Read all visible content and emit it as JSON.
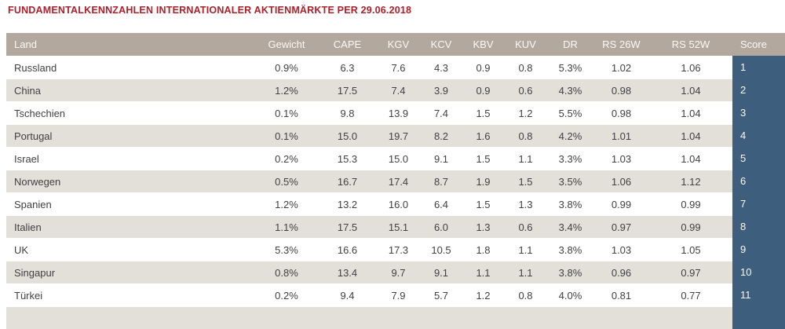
{
  "title": "FUNDAMENTALKENNZAHLEN INTERNATIONALER AKTIENMÄRKTE PER 29.06.2018",
  "chart_data": {
    "type": "table",
    "columns": [
      "Land",
      "Gewicht",
      "CAPE",
      "KGV",
      "KCV",
      "KBV",
      "KUV",
      "DR",
      "RS 26W",
      "RS 52W",
      "Score"
    ],
    "rows": [
      [
        "Russland",
        "0.9%",
        "6.3",
        "7.6",
        "4.3",
        "0.9",
        "0.8",
        "5.3%",
        "1.02",
        "1.06",
        "1"
      ],
      [
        "China",
        "1.2%",
        "17.5",
        "7.4",
        "3.9",
        "0.9",
        "0.6",
        "4.3%",
        "0.98",
        "1.04",
        "2"
      ],
      [
        "Tschechien",
        "0.1%",
        "9.8",
        "13.9",
        "7.4",
        "1.5",
        "1.2",
        "5.5%",
        "0.98",
        "1.04",
        "3"
      ],
      [
        "Portugal",
        "0.1%",
        "15.0",
        "19.7",
        "8.2",
        "1.6",
        "0.8",
        "4.2%",
        "1.01",
        "1.04",
        "4"
      ],
      [
        "Israel",
        "0.2%",
        "15.3",
        "15.0",
        "9.1",
        "1.5",
        "1.1",
        "3.3%",
        "1.03",
        "1.04",
        "5"
      ],
      [
        "Norwegen",
        "0.5%",
        "16.7",
        "17.4",
        "8.7",
        "1.9",
        "1.5",
        "3.5%",
        "1.06",
        "1.12",
        "6"
      ],
      [
        "Spanien",
        "1.2%",
        "13.2",
        "16.0",
        "6.4",
        "1.5",
        "1.3",
        "3.8%",
        "0.99",
        "0.99",
        "7"
      ],
      [
        "Italien",
        "1.1%",
        "17.5",
        "15.1",
        "6.0",
        "1.3",
        "0.6",
        "3.4%",
        "0.97",
        "0.99",
        "8"
      ],
      [
        "UK",
        "5.3%",
        "16.6",
        "17.3",
        "10.5",
        "1.8",
        "1.1",
        "3.8%",
        "1.03",
        "1.05",
        "9"
      ],
      [
        "Singapur",
        "0.8%",
        "13.4",
        "9.7",
        "9.1",
        "1.1",
        "1.1",
        "3.8%",
        "0.96",
        "0.97",
        "10"
      ],
      [
        "Türkei",
        "0.2%",
        "9.4",
        "7.9",
        "5.7",
        "1.2",
        "0.8",
        "4.0%",
        "0.81",
        "0.77",
        "11"
      ]
    ],
    "partial_row_visible": true
  },
  "colors": {
    "title": "#b01e28",
    "header_bg": "#b2a89d",
    "header_text": "#fbf9f6",
    "row_alt_bg": "#e3e0da",
    "score_col_bg": "#3e5e7e",
    "score_col_text": "#fbf9f6",
    "cell_text": "#414141"
  }
}
